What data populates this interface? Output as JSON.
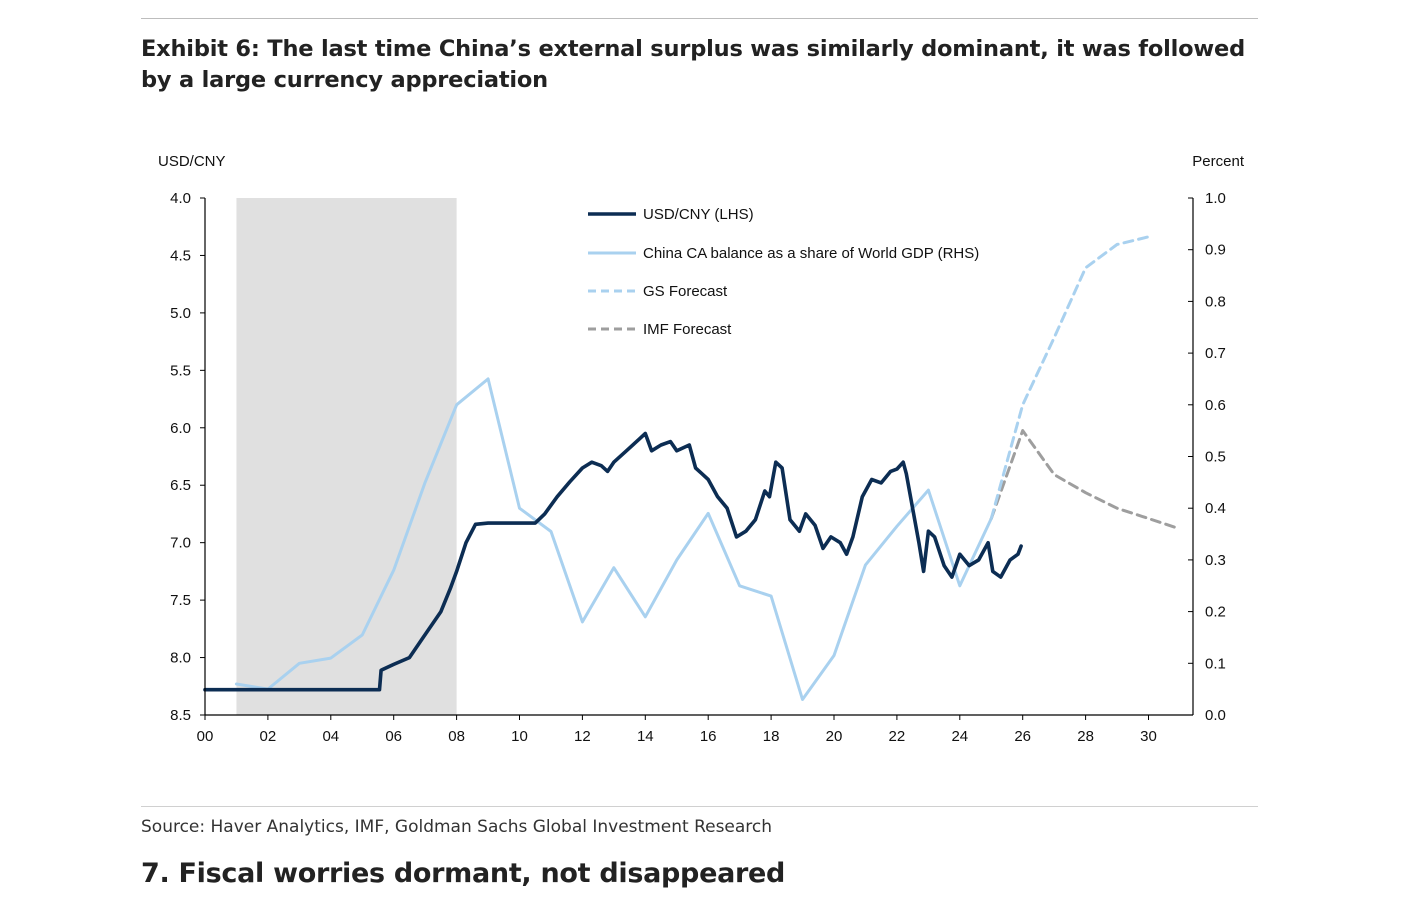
{
  "page": {
    "title": "Exhibit 6: The last time China’s external surplus was similarly dominant, it was followed by a large currency appreciation",
    "source": "Source: Haver Analytics, IMF, Goldman Sachs Global Investment Research",
    "next_section_heading": "7. Fiscal worries dormant, not disappeared"
  },
  "chart_data": {
    "type": "line",
    "left_axis": {
      "label": "USD/CNY",
      "min": 4.0,
      "max": 8.5,
      "inverted": true,
      "ticks": [
        "4.0",
        "4.5",
        "5.0",
        "5.5",
        "6.0",
        "6.5",
        "7.0",
        "7.5",
        "8.0",
        "8.5"
      ]
    },
    "right_axis": {
      "label": "Percent",
      "min": 0.0,
      "max": 1.0,
      "ticks": [
        "1.0",
        "0.9",
        "0.8",
        "0.7",
        "0.6",
        "0.5",
        "0.4",
        "0.3",
        "0.2",
        "0.1",
        "0.0"
      ]
    },
    "x_axis": {
      "min": 2000,
      "max": 2031,
      "ticks": [
        "00",
        "02",
        "04",
        "06",
        "08",
        "10",
        "12",
        "14",
        "16",
        "18",
        "20",
        "22",
        "24",
        "26",
        "28",
        "30"
      ]
    },
    "shaded_period": {
      "start": 2001,
      "end": 2008
    },
    "legend": {
      "position": "top-center"
    },
    "series": [
      {
        "name": "USD/CNY (LHS)",
        "axis": "left",
        "color": "#0c2d53",
        "style": "solid-thick",
        "points": [
          [
            2000,
            8.28
          ],
          [
            2005.55,
            8.28
          ],
          [
            2005.6,
            8.11
          ],
          [
            2006.0,
            8.06
          ],
          [
            2006.5,
            8.0
          ],
          [
            2007.0,
            7.8
          ],
          [
            2007.5,
            7.6
          ],
          [
            2007.8,
            7.4
          ],
          [
            2008.0,
            7.25
          ],
          [
            2008.3,
            7.0
          ],
          [
            2008.6,
            6.84
          ],
          [
            2009,
            6.83
          ],
          [
            2009.5,
            6.83
          ],
          [
            2010.0,
            6.83
          ],
          [
            2010.5,
            6.83
          ],
          [
            2010.8,
            6.75
          ],
          [
            2011.2,
            6.6
          ],
          [
            2011.6,
            6.47
          ],
          [
            2012.0,
            6.35
          ],
          [
            2012.3,
            6.3
          ],
          [
            2012.6,
            6.33
          ],
          [
            2012.8,
            6.38
          ],
          [
            2013.0,
            6.3
          ],
          [
            2013.4,
            6.2
          ],
          [
            2013.8,
            6.1
          ],
          [
            2014.0,
            6.05
          ],
          [
            2014.2,
            6.2
          ],
          [
            2014.5,
            6.15
          ],
          [
            2014.8,
            6.12
          ],
          [
            2015.0,
            6.2
          ],
          [
            2015.4,
            6.15
          ],
          [
            2015.6,
            6.35
          ],
          [
            2015.8,
            6.4
          ],
          [
            2016.0,
            6.45
          ],
          [
            2016.3,
            6.6
          ],
          [
            2016.6,
            6.7
          ],
          [
            2016.9,
            6.95
          ],
          [
            2017.2,
            6.9
          ],
          [
            2017.5,
            6.8
          ],
          [
            2017.8,
            6.55
          ],
          [
            2017.95,
            6.6
          ],
          [
            2018.15,
            6.3
          ],
          [
            2018.35,
            6.35
          ],
          [
            2018.6,
            6.8
          ],
          [
            2018.9,
            6.9
          ],
          [
            2019.1,
            6.75
          ],
          [
            2019.4,
            6.85
          ],
          [
            2019.65,
            7.05
          ],
          [
            2019.9,
            6.95
          ],
          [
            2020.2,
            7.0
          ],
          [
            2020.4,
            7.1
          ],
          [
            2020.6,
            6.95
          ],
          [
            2020.9,
            6.6
          ],
          [
            2021.2,
            6.45
          ],
          [
            2021.5,
            6.48
          ],
          [
            2021.8,
            6.38
          ],
          [
            2022.0,
            6.36
          ],
          [
            2022.2,
            6.3
          ],
          [
            2022.3,
            6.4
          ],
          [
            2022.5,
            6.7
          ],
          [
            2022.7,
            7.0
          ],
          [
            2022.85,
            7.25
          ],
          [
            2023.0,
            6.9
          ],
          [
            2023.2,
            6.95
          ],
          [
            2023.5,
            7.2
          ],
          [
            2023.75,
            7.3
          ],
          [
            2024.0,
            7.1
          ],
          [
            2024.3,
            7.2
          ],
          [
            2024.6,
            7.15
          ],
          [
            2024.9,
            7.0
          ],
          [
            2025.05,
            7.25
          ],
          [
            2025.3,
            7.3
          ],
          [
            2025.6,
            7.15
          ],
          [
            2025.85,
            7.1
          ],
          [
            2025.95,
            7.03
          ]
        ]
      },
      {
        "name": "China CA balance as a share of World GDP (RHS)",
        "axis": "right",
        "color": "#a9d1ef",
        "style": "solid",
        "points": [
          [
            2001,
            0.06
          ],
          [
            2002,
            0.05
          ],
          [
            2003,
            0.1
          ],
          [
            2004,
            0.11
          ],
          [
            2005,
            0.155
          ],
          [
            2006,
            0.28
          ],
          [
            2007,
            0.45
          ],
          [
            2008,
            0.6
          ],
          [
            2009,
            0.65
          ],
          [
            2010,
            0.4
          ],
          [
            2011,
            0.355
          ],
          [
            2012,
            0.18
          ],
          [
            2013,
            0.285
          ],
          [
            2014,
            0.19
          ],
          [
            2015,
            0.3
          ],
          [
            2016,
            0.39
          ],
          [
            2017,
            0.25
          ],
          [
            2018,
            0.23
          ],
          [
            2019,
            0.03
          ],
          [
            2020,
            0.115
          ],
          [
            2021,
            0.29
          ],
          [
            2022,
            0.365
          ],
          [
            2023,
            0.435
          ],
          [
            2024,
            0.25
          ],
          [
            2025,
            0.38
          ]
        ]
      },
      {
        "name": "GS Forecast",
        "axis": "right",
        "color": "#a9d1ef",
        "style": "dashed",
        "points": [
          [
            2025,
            0.38
          ],
          [
            2026,
            0.6
          ],
          [
            2027,
            0.73
          ],
          [
            2028,
            0.865
          ],
          [
            2029,
            0.91
          ],
          [
            2030,
            0.925
          ]
        ]
      },
      {
        "name": "IMF Forecast",
        "axis": "right",
        "color": "#9e9e9e",
        "style": "dashed",
        "points": [
          [
            2025,
            0.38
          ],
          [
            2026,
            0.55
          ],
          [
            2027,
            0.465
          ],
          [
            2028,
            0.43
          ],
          [
            2029,
            0.4
          ],
          [
            2030,
            0.38
          ],
          [
            2031,
            0.36
          ]
        ]
      }
    ]
  }
}
